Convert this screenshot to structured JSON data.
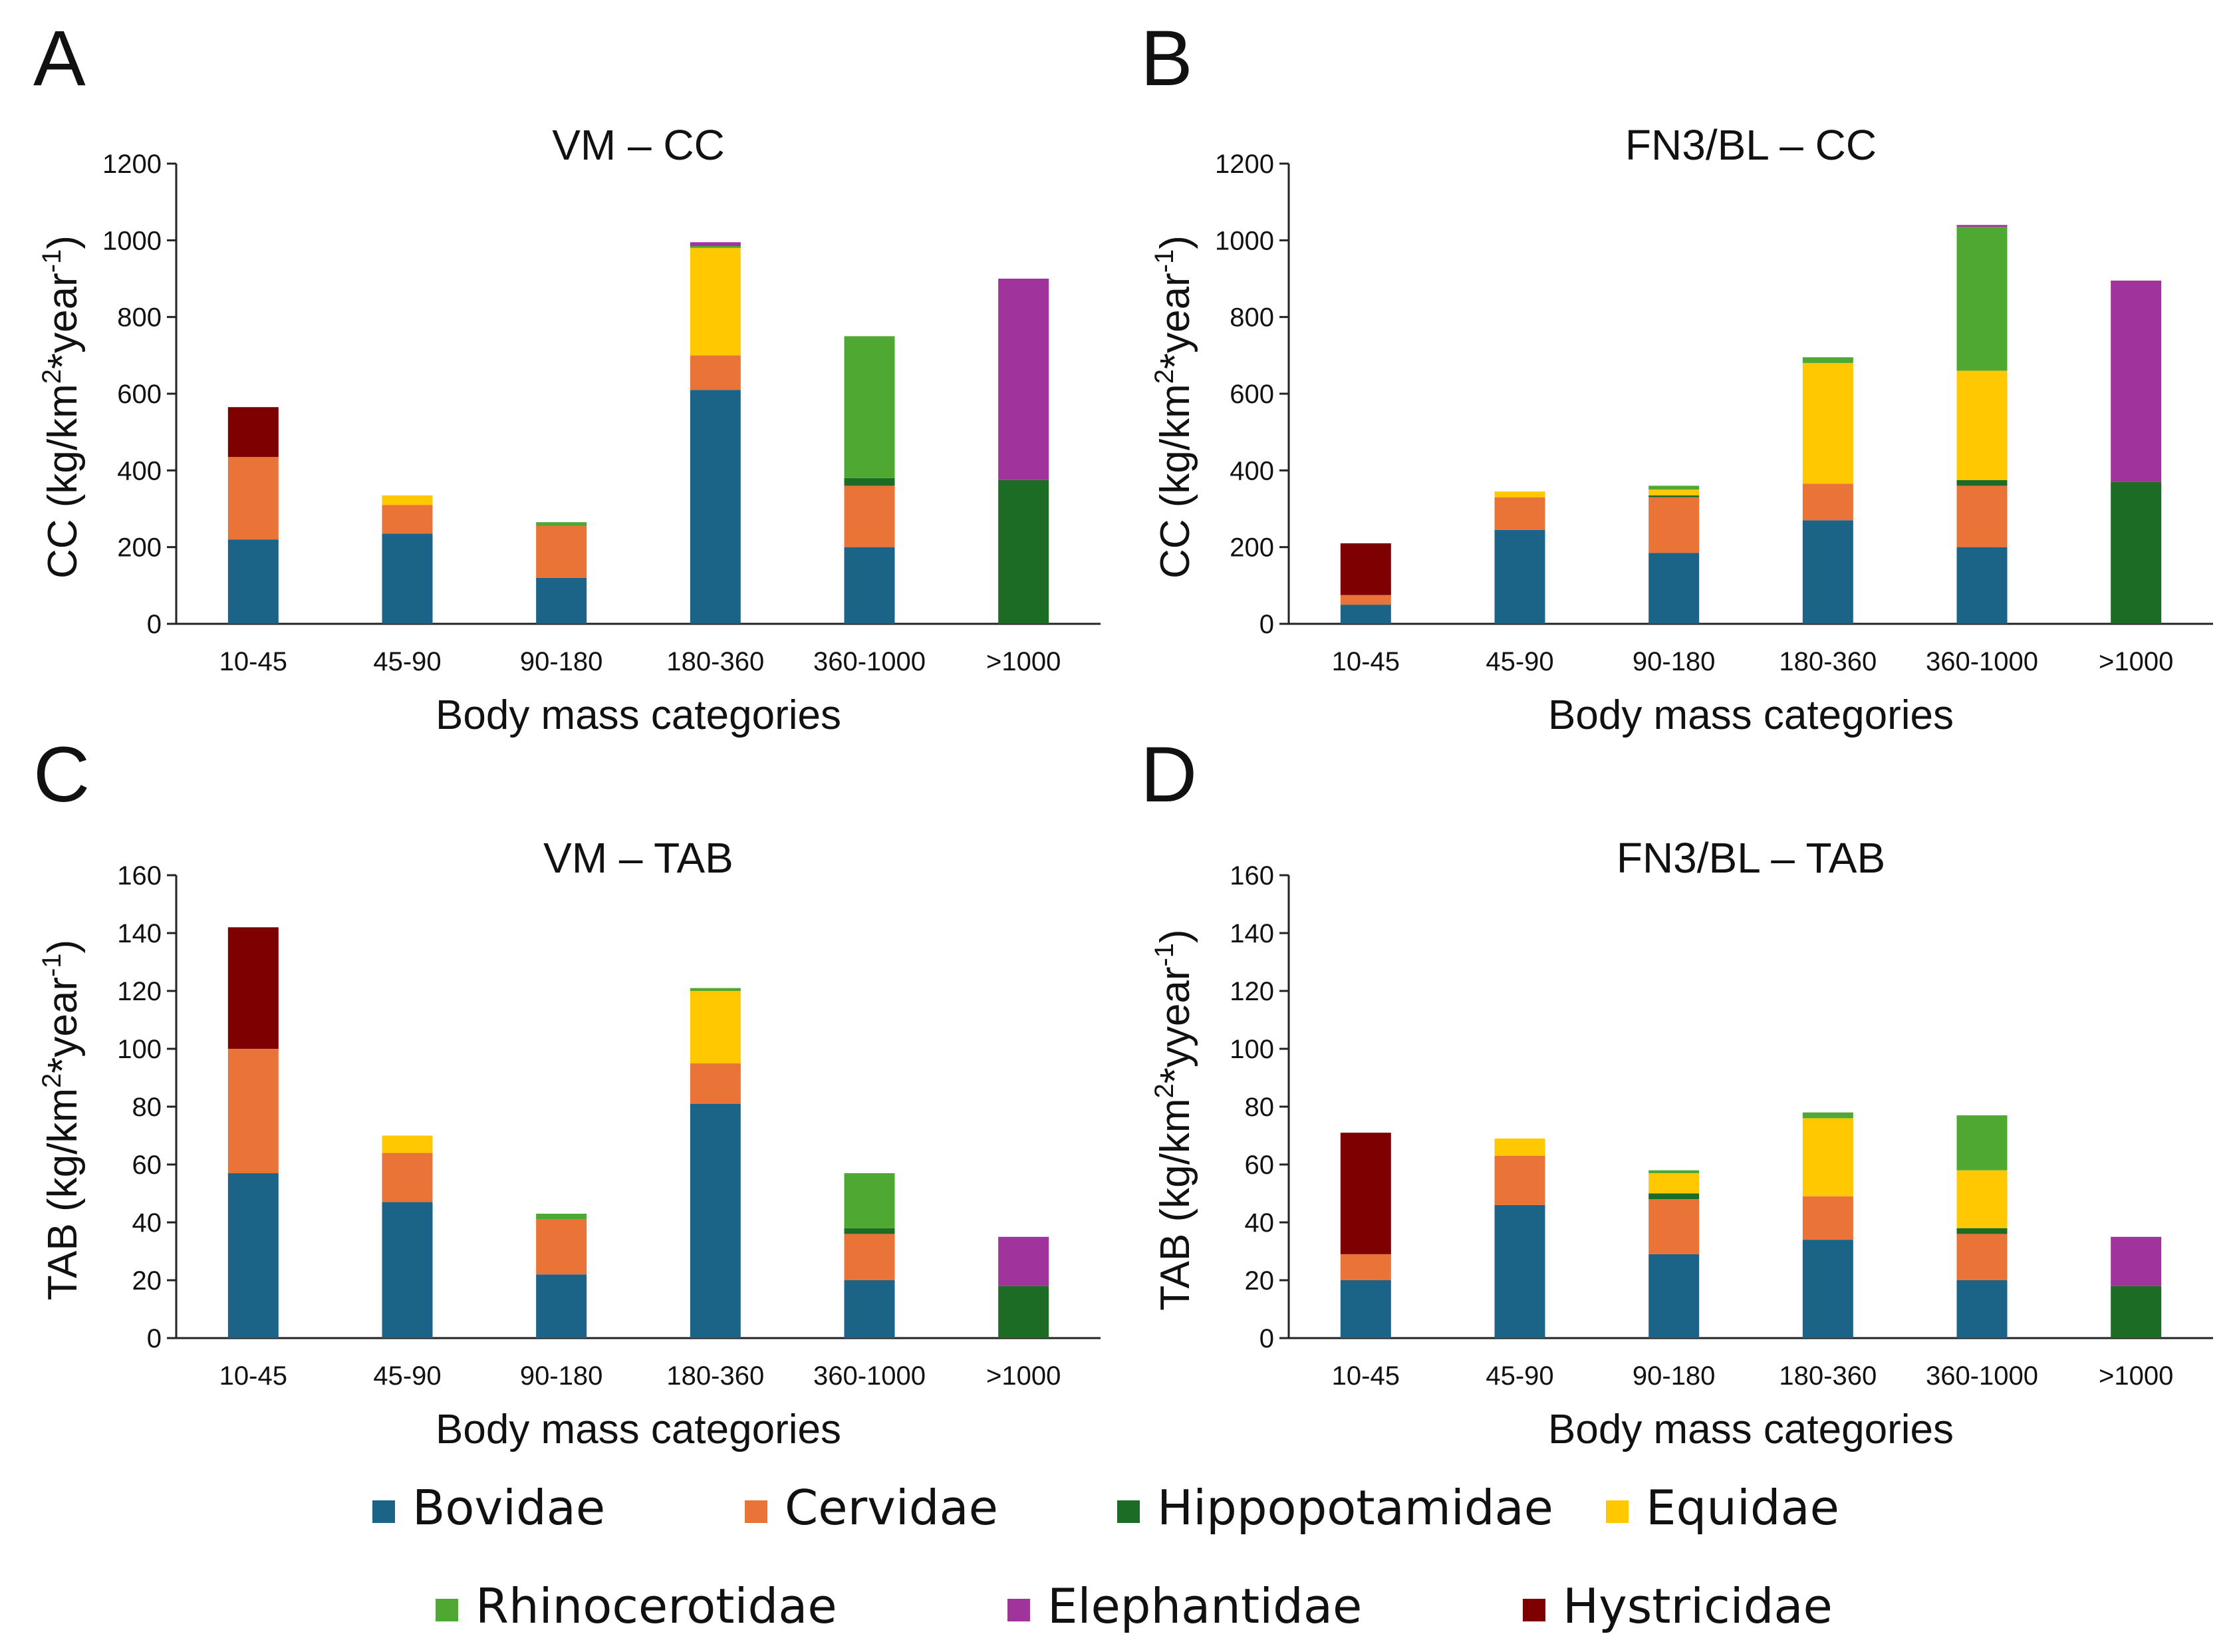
{
  "colors": {
    "Bovidae": "#1b6487",
    "Cervidae": "#ea7338",
    "Hippopotamidae": "#1c6c26",
    "Equidae": "#ffc800",
    "Rhinocerotidae": "#4fa832",
    "Elephantidae": "#a0339c",
    "Hystricidae": "#7f0000",
    "Rhino-dark": "#3c4a3e"
  },
  "legend": {
    "items": [
      "Bovidae",
      "Cervidae",
      "Hippopotamidae",
      "Equidae",
      "Rhinocerotidae",
      "Elephantidae",
      "Hystricidae"
    ]
  },
  "chart_data": [
    {
      "panel": "A",
      "type": "bar",
      "stacked": true,
      "title": "VM – CC",
      "ylabel_main": "CC (kg/km",
      "ylabel_sup1": "2",
      "ylabel_mid": "*year",
      "ylabel_sup2": "-1",
      "ylabel_end": ")",
      "xlabel": "Body mass categories",
      "ylim": [
        0,
        1200
      ],
      "yticks": [
        "0",
        "200",
        "400",
        "600",
        "800",
        "1000",
        "1200"
      ],
      "categories": [
        "10-45",
        "45-90",
        "90-180",
        "180-360",
        "360-1000",
        ">1000"
      ],
      "series": [
        {
          "name": "Bovidae",
          "values": [
            220,
            235,
            120,
            610,
            200,
            0
          ]
        },
        {
          "name": "Cervidae",
          "values": [
            215,
            75,
            135,
            90,
            160,
            0
          ]
        },
        {
          "name": "Hippopotamidae",
          "values": [
            0,
            0,
            0,
            0,
            20,
            375
          ]
        },
        {
          "name": "Equidae",
          "values": [
            0,
            25,
            0,
            280,
            0,
            0
          ]
        },
        {
          "name": "Rhinocerotidae",
          "values": [
            0,
            0,
            10,
            5,
            370,
            0
          ]
        },
        {
          "name": "Elephantidae",
          "values": [
            0,
            0,
            0,
            10,
            0,
            525
          ]
        },
        {
          "name": "Hystricidae",
          "values": [
            130,
            0,
            0,
            0,
            0,
            0
          ]
        }
      ]
    },
    {
      "panel": "B",
      "type": "bar",
      "stacked": true,
      "title": "FN3/BL – CC",
      "ylabel_main": "CC (kg/km",
      "ylabel_sup1": "2",
      "ylabel_mid": "*year",
      "ylabel_sup2": "-1",
      "ylabel_end": ")",
      "xlabel": "Body mass categories",
      "ylim": [
        0,
        1200
      ],
      "yticks": [
        "0",
        "200",
        "400",
        "600",
        "800",
        "1000",
        "1200"
      ],
      "categories": [
        "10-45",
        "45-90",
        "90-180",
        "180-360",
        "360-1000",
        ">1000"
      ],
      "series": [
        {
          "name": "Bovidae",
          "values": [
            50,
            245,
            185,
            270,
            200,
            0
          ]
        },
        {
          "name": "Cervidae",
          "values": [
            25,
            85,
            145,
            95,
            160,
            0
          ]
        },
        {
          "name": "Hippopotamidae",
          "values": [
            0,
            0,
            5,
            0,
            15,
            370
          ]
        },
        {
          "name": "Equidae",
          "values": [
            0,
            15,
            15,
            315,
            285,
            0
          ]
        },
        {
          "name": "Rhinocerotidae",
          "values": [
            0,
            0,
            10,
            15,
            375,
            0
          ]
        },
        {
          "name": "Elephantidae",
          "values": [
            0,
            0,
            0,
            0,
            5,
            525
          ]
        },
        {
          "name": "Hystricidae",
          "values": [
            135,
            0,
            0,
            0,
            0,
            0
          ]
        }
      ]
    },
    {
      "panel": "C",
      "type": "bar",
      "stacked": true,
      "title": "VM – TAB",
      "ylabel_main": "TAB (kg/km",
      "ylabel_sup1": "2",
      "ylabel_mid": "*year",
      "ylabel_sup2": "-1",
      "ylabel_end": ")",
      "xlabel": "Body mass categories",
      "ylim": [
        0,
        160
      ],
      "yticks": [
        "0",
        "20",
        "40",
        "60",
        "80",
        "100",
        "120",
        "140",
        "160"
      ],
      "categories": [
        "10-45",
        "45-90",
        "90-180",
        "180-360",
        "360-1000",
        ">1000"
      ],
      "series": [
        {
          "name": "Bovidae",
          "values": [
            57,
            47,
            22,
            81,
            20,
            0
          ]
        },
        {
          "name": "Cervidae",
          "values": [
            43,
            17,
            19,
            14,
            16,
            0
          ]
        },
        {
          "name": "Hippopotamidae",
          "values": [
            0,
            0,
            0,
            0,
            2,
            18
          ]
        },
        {
          "name": "Equidae",
          "values": [
            0,
            6,
            0,
            25,
            0,
            0
          ]
        },
        {
          "name": "Rhinocerotidae",
          "values": [
            0,
            0,
            2,
            1,
            19,
            0
          ]
        },
        {
          "name": "Elephantidae",
          "values": [
            0,
            0,
            0,
            0,
            0,
            17
          ]
        },
        {
          "name": "Hystricidae",
          "values": [
            42,
            0,
            0,
            0,
            0,
            0
          ]
        }
      ]
    },
    {
      "panel": "D",
      "type": "bar",
      "stacked": true,
      "title": "FN3/BL – TAB",
      "ylabel_main": "TAB (kg/km",
      "ylabel_sup1": "2",
      "ylabel_mid": "*yyear",
      "ylabel_sup2": "-1",
      "ylabel_end": ")",
      "xlabel": "Body mass categories",
      "ylim": [
        0,
        160
      ],
      "yticks": [
        "0",
        "20",
        "40",
        "60",
        "80",
        "100",
        "120",
        "140",
        "160"
      ],
      "categories": [
        "10-45",
        "45-90",
        "90-180",
        "180-360",
        "360-1000",
        ">1000"
      ],
      "series": [
        {
          "name": "Bovidae",
          "values": [
            20,
            46,
            29,
            34,
            20,
            0
          ]
        },
        {
          "name": "Cervidae",
          "values": [
            9,
            17,
            19,
            15,
            16,
            0
          ]
        },
        {
          "name": "Hippopotamidae",
          "values": [
            0,
            0,
            2,
            0,
            2,
            18
          ]
        },
        {
          "name": "Equidae",
          "values": [
            0,
            6,
            7,
            27,
            20,
            0
          ]
        },
        {
          "name": "Rhinocerotidae",
          "values": [
            0,
            0,
            1,
            2,
            19,
            0
          ]
        },
        {
          "name": "Elephantidae",
          "values": [
            0,
            0,
            0,
            0,
            0,
            17
          ]
        },
        {
          "name": "Hystricidae",
          "values": [
            42,
            0,
            0,
            0,
            0,
            0
          ]
        }
      ]
    }
  ]
}
